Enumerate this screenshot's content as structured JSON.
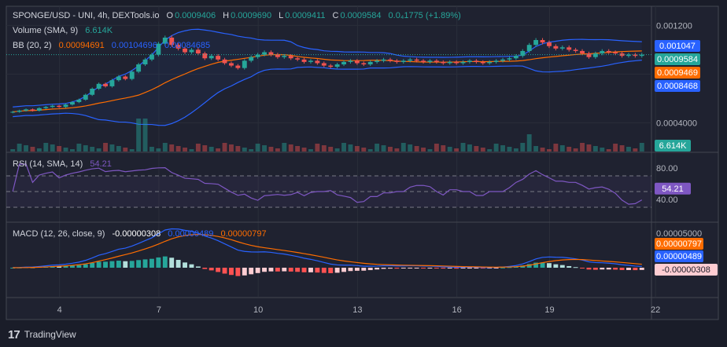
{
  "legend": {
    "symbol": "SPONGE/USD - UNI, 4h, DEXTools.io",
    "o_label": "O",
    "o_value": "0.0009406",
    "h_label": "H",
    "h_value": "0.0009690",
    "l_label": "L",
    "l_value": "0.0009411",
    "c_label": "C",
    "c_value": "0.0009584",
    "change": "0.0₄1775 (+1.89%)",
    "volume_label": "Volume (SMA, 9)",
    "volume_value": "6.614K",
    "bb_label": "BB (20, 2)",
    "bb_basis": "0.00094691",
    "bb_upper": "0.00104696",
    "bb_lower": "0.00084685"
  },
  "rsi_legend": {
    "label": "RSI (14, SMA, 14)",
    "value": "54.21"
  },
  "macd_legend": {
    "label": "MACD (12, 26, close, 9)",
    "hist": "-0.00000308",
    "macd": "0.00000489",
    "signal": "0.00000797"
  },
  "price_axis": [
    "0.001200",
    "0.0004000"
  ],
  "price_badges": [
    {
      "text": "0.001047",
      "bg": "#2962ff",
      "fg": "#ffffff"
    },
    {
      "text": "0.0009584",
      "bg": "#26a69a",
      "fg": "#ffffff"
    },
    {
      "text": "0.0009469",
      "bg": "#ff6d00",
      "fg": "#ffffff"
    },
    {
      "text": "0.0008468",
      "bg": "#2962ff",
      "fg": "#ffffff"
    }
  ],
  "volume_badge": {
    "text": "6.614K",
    "bg": "#26a69a",
    "fg": "#ffffff"
  },
  "rsi_axis": [
    "80.00",
    "40.00"
  ],
  "rsi_badge": {
    "text": "54.21",
    "bg": "#7e57c2",
    "fg": "#ffffff"
  },
  "macd_axis": [
    "0.00005000"
  ],
  "macd_badges": [
    {
      "text": "0.00000797",
      "bg": "#ff6d00",
      "fg": "#ffffff"
    },
    {
      "text": "0.00000489",
      "bg": "#2962ff",
      "fg": "#ffffff"
    },
    {
      "text": "-0.00000308",
      "bg": "#ffcdd2",
      "fg": "#1a1d29"
    }
  ],
  "x_axis": [
    "4",
    "7",
    "10",
    "13",
    "16",
    "19",
    "22"
  ],
  "footer": {
    "brand": "TradingView"
  },
  "colors": {
    "up": "#26a69a",
    "down": "#ef5350",
    "bb_band": "#2962ff",
    "bb_basis": "#ff6d00",
    "rsi": "#7e57c2",
    "macd": "#2962ff",
    "signal": "#ff6d00"
  },
  "chart_data": {
    "type": "candlestick",
    "timeframe": "4h",
    "x_day_ticks": [
      4,
      7,
      10,
      13,
      16,
      19,
      22
    ],
    "price_close": [
      0.00049,
      0.0005,
      0.00051,
      0.0005,
      0.00052,
      0.00053,
      0.00054,
      0.00053,
      0.00055,
      0.00057,
      0.00059,
      0.00063,
      0.00068,
      0.00072,
      0.0007,
      0.00075,
      0.00078,
      0.00076,
      0.00082,
      0.00088,
      0.00092,
      0.00096,
      0.00105,
      0.0011,
      0.00104,
      0.00101,
      0.00098,
      0.001,
      0.00097,
      0.00093,
      0.00095,
      0.00092,
      0.00089,
      0.00087,
      0.00085,
      0.00091,
      0.00094,
      0.00096,
      0.00098,
      0.00096,
      0.00094,
      0.00095,
      0.00093,
      0.00092,
      0.0009,
      0.00091,
      0.00089,
      0.00087,
      0.00086,
      0.00088,
      0.0009,
      0.00091,
      0.00089,
      0.00088,
      0.0009,
      0.00091,
      0.00092,
      0.00091,
      0.0009,
      0.00091,
      0.00092,
      0.00091,
      0.0009,
      0.00091,
      0.0009,
      0.00089,
      0.0009,
      0.00089,
      0.0009,
      0.00091,
      0.0009,
      0.00089,
      0.0009,
      0.00091,
      0.00092,
      0.00093,
      0.00095,
      0.00099,
      0.00104,
      0.00108,
      0.00106,
      0.00103,
      0.00101,
      0.00102,
      0.001,
      0.00099,
      0.00097,
      0.00094,
      0.00097,
      0.00099,
      0.00098,
      0.00097,
      0.00095,
      0.00096,
      0.00095,
      0.00096
    ],
    "volume_sma_last": 6614,
    "bollinger": {
      "period": 20,
      "stddev": 2,
      "basis": 0.00094691,
      "upper": 0.00104696,
      "lower": 0.00084685
    },
    "rsi": {
      "period": 14,
      "last": 54.21,
      "levels": [
        70,
        50,
        30
      ],
      "axis_labels": [
        80,
        40
      ]
    },
    "macd": {
      "fast": 12,
      "slow": 26,
      "signal": 9,
      "macd_last": 4.89e-06,
      "signal_last": 7.97e-06,
      "hist_last": -3.08e-06
    },
    "ohlc_last": {
      "open": 0.0009406,
      "high": 0.000969,
      "low": 0.0009411,
      "close": 0.0009584,
      "change_pct": 1.89
    }
  }
}
